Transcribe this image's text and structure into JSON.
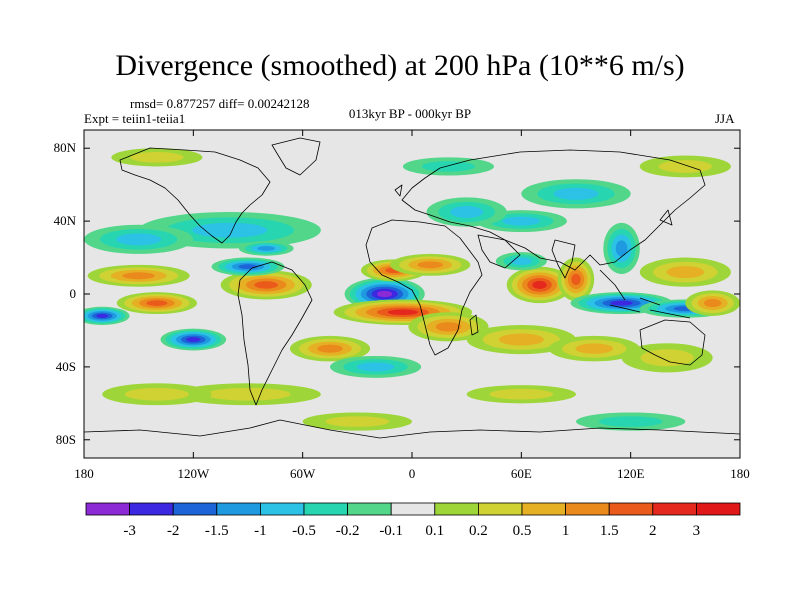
{
  "figure": {
    "title": "Divergence (smoothed) at 200 hPa (10**6 m/s)",
    "stats": "rmsd= 0.877257 diff= 0.00242128",
    "expt": "Expt = teiin1-teiia1",
    "period": "013kyr BP - 000kyr BP",
    "season": "JJA"
  },
  "map": {
    "projection": "cylindrical-equidistant",
    "lon_range": [
      -180,
      180
    ],
    "lat_range": [
      -90,
      90
    ],
    "x_ticks": [
      {
        "value": -180,
        "label": "180"
      },
      {
        "value": -120,
        "label": "120W"
      },
      {
        "value": -60,
        "label": "60W"
      },
      {
        "value": 0,
        "label": "0"
      },
      {
        "value": 60,
        "label": "60E"
      },
      {
        "value": 120,
        "label": "120E"
      },
      {
        "value": 180,
        "label": "180"
      }
    ],
    "y_ticks": [
      {
        "value": 80,
        "label": "80N"
      },
      {
        "value": 40,
        "label": "40N"
      },
      {
        "value": 0,
        "label": "0"
      },
      {
        "value": -40,
        "label": "40S"
      },
      {
        "value": -80,
        "label": "80S"
      }
    ],
    "features": [
      {
        "lon": -15,
        "lat": 0,
        "value": -3.2,
        "rx": 22,
        "ry": 9
      },
      {
        "lon": -10,
        "lat": 13,
        "value": 1.8,
        "rx": 18,
        "ry": 6
      },
      {
        "lon": -5,
        "lat": -10,
        "value": 2.2,
        "rx": 38,
        "ry": 7
      },
      {
        "lon": 20,
        "lat": -18,
        "value": 1.4,
        "rx": 22,
        "ry": 8
      },
      {
        "lon": 10,
        "lat": 16,
        "value": 1.2,
        "rx": 22,
        "ry": 6
      },
      {
        "lon": 70,
        "lat": 5,
        "value": 2.8,
        "rx": 18,
        "ry": 10
      },
      {
        "lon": 90,
        "lat": 8,
        "value": 1.6,
        "rx": 10,
        "ry": 12
      },
      {
        "lon": 60,
        "lat": 18,
        "value": -0.6,
        "rx": 14,
        "ry": 5
      },
      {
        "lon": 115,
        "lat": -5,
        "value": -2.6,
        "rx": 28,
        "ry": 6
      },
      {
        "lon": 150,
        "lat": -8,
        "value": -1.6,
        "rx": 25,
        "ry": 5
      },
      {
        "lon": 165,
        "lat": -5,
        "value": 1.2,
        "rx": 15,
        "ry": 7
      },
      {
        "lon": 150,
        "lat": 12,
        "value": 0.8,
        "rx": 25,
        "ry": 8
      },
      {
        "lon": 115,
        "lat": 25,
        "value": -1.4,
        "rx": 10,
        "ry": 14
      },
      {
        "lon": 60,
        "lat": 40,
        "value": -0.8,
        "rx": 25,
        "ry": 6
      },
      {
        "lon": 30,
        "lat": 45,
        "value": -0.5,
        "rx": 22,
        "ry": 8
      },
      {
        "lon": 90,
        "lat": 55,
        "value": -0.5,
        "rx": 30,
        "ry": 8
      },
      {
        "lon": -100,
        "lat": 35,
        "value": -0.8,
        "rx": 50,
        "ry": 10
      },
      {
        "lon": -150,
        "lat": 30,
        "value": -0.7,
        "rx": 30,
        "ry": 8
      },
      {
        "lon": -150,
        "lat": 10,
        "value": 1.2,
        "rx": 28,
        "ry": 6
      },
      {
        "lon": -140,
        "lat": -5,
        "value": 1.6,
        "rx": 22,
        "ry": 6
      },
      {
        "lon": -80,
        "lat": 5,
        "value": 1.8,
        "rx": 25,
        "ry": 8
      },
      {
        "lon": -90,
        "lat": 15,
        "value": -1.5,
        "rx": 20,
        "ry": 5
      },
      {
        "lon": -80,
        "lat": 25,
        "value": -1.0,
        "rx": 15,
        "ry": 4
      },
      {
        "lon": -170,
        "lat": -12,
        "value": -2.2,
        "rx": 15,
        "ry": 5
      },
      {
        "lon": -120,
        "lat": -25,
        "value": -2.0,
        "rx": 18,
        "ry": 6
      },
      {
        "lon": -45,
        "lat": -30,
        "value": 1.0,
        "rx": 22,
        "ry": 7
      },
      {
        "lon": -20,
        "lat": -40,
        "value": -0.8,
        "rx": 25,
        "ry": 6
      },
      {
        "lon": 60,
        "lat": -25,
        "value": 0.8,
        "rx": 30,
        "ry": 8
      },
      {
        "lon": 100,
        "lat": -30,
        "value": 0.8,
        "rx": 25,
        "ry": 7
      },
      {
        "lon": 140,
        "lat": -35,
        "value": 0.4,
        "rx": 25,
        "ry": 8
      },
      {
        "lon": -90,
        "lat": -55,
        "value": 0.4,
        "rx": 40,
        "ry": 6
      },
      {
        "lon": -140,
        "lat": -55,
        "value": 0.3,
        "rx": 30,
        "ry": 6
      },
      {
        "lon": 60,
        "lat": -55,
        "value": 0.3,
        "rx": 30,
        "ry": 5
      },
      {
        "lon": -140,
        "lat": 75,
        "value": 0.3,
        "rx": 25,
        "ry": 5
      },
      {
        "lon": 150,
        "lat": 70,
        "value": 0.4,
        "rx": 25,
        "ry": 6
      },
      {
        "lon": 20,
        "lat": 70,
        "value": -0.3,
        "rx": 25,
        "ry": 5
      },
      {
        "lon": -30,
        "lat": -70,
        "value": 0.3,
        "rx": 30,
        "ry": 5
      },
      {
        "lon": 120,
        "lat": -70,
        "value": -0.3,
        "rx": 30,
        "ry": 5
      }
    ]
  },
  "colorbar": {
    "levels": [
      "-3",
      "-2",
      "-1.5",
      "-1",
      "-0.5",
      "-0.2",
      "-0.1",
      "0.1",
      "0.2",
      "0.5",
      "1",
      "1.5",
      "2",
      "3"
    ],
    "colors": [
      "#8c2ad6",
      "#3b28e0",
      "#1c64d8",
      "#1f9ae0",
      "#2cc2e6",
      "#27d6b0",
      "#52d68a",
      "#e6e6e6",
      "#9ed63a",
      "#cfd232",
      "#e6b024",
      "#ea8a1c",
      "#ea5a1a",
      "#e4281e",
      "#e01818"
    ]
  }
}
